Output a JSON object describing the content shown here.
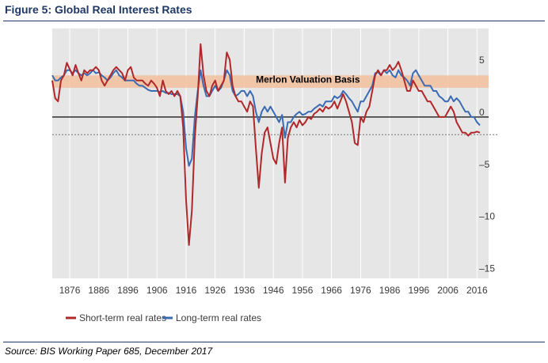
{
  "figure": {
    "title": "Figure 5:  Global Real Interest Rates",
    "source": "Source: BIS Working Paper 685, December 2017"
  },
  "colors": {
    "short": "#b0282a",
    "long": "#3a6bb3",
    "band": "#f2c09c",
    "plot_bg": "#e6e6e6",
    "zero_line": "#3c3c3c",
    "title": "#1f3864"
  },
  "chart_data": {
    "type": "line",
    "title": "",
    "xlabel": "",
    "ylabel": "",
    "xlim": [
      1870,
      2020
    ],
    "ylim": [
      -15.5,
      8.5
    ],
    "x_ticks": [
      1876,
      1886,
      1896,
      1906,
      1916,
      1926,
      1936,
      1946,
      1956,
      1966,
      1976,
      1986,
      1996,
      2006,
      2016
    ],
    "y_ticks": [
      5,
      0,
      -5,
      -10,
      -15
    ],
    "grid": "vertical",
    "zero_line": true,
    "reference_line": -1.7,
    "band": {
      "label": "Merlon Valuation Basis",
      "from": 2.8,
      "to": 4.0
    },
    "legend_position": "bottom-left",
    "series": [
      {
        "name": "Short-term real rates",
        "points": [
          [
            1870,
            3.5
          ],
          [
            1871,
            1.8
          ],
          [
            1872,
            1.5
          ],
          [
            1873,
            3.5
          ],
          [
            1874,
            4.0
          ],
          [
            1875,
            5.2
          ],
          [
            1876,
            4.6
          ],
          [
            1877,
            4.0
          ],
          [
            1878,
            5.0
          ],
          [
            1879,
            4.2
          ],
          [
            1880,
            3.5
          ],
          [
            1881,
            4.5
          ],
          [
            1882,
            4.2
          ],
          [
            1883,
            4.5
          ],
          [
            1884,
            4.5
          ],
          [
            1885,
            4.8
          ],
          [
            1886,
            4.5
          ],
          [
            1887,
            3.5
          ],
          [
            1888,
            3.0
          ],
          [
            1889,
            3.5
          ],
          [
            1890,
            4.0
          ],
          [
            1891,
            4.5
          ],
          [
            1892,
            4.8
          ],
          [
            1893,
            4.5
          ],
          [
            1894,
            4.2
          ],
          [
            1895,
            3.5
          ],
          [
            1896,
            4.5
          ],
          [
            1897,
            4.8
          ],
          [
            1898,
            3.8
          ],
          [
            1899,
            3.5
          ],
          [
            1900,
            3.5
          ],
          [
            1901,
            3.5
          ],
          [
            1902,
            3.2
          ],
          [
            1903,
            3.0
          ],
          [
            1904,
            3.5
          ],
          [
            1905,
            3.2
          ],
          [
            1906,
            2.8
          ],
          [
            1907,
            2.0
          ],
          [
            1908,
            3.5
          ],
          [
            1909,
            2.5
          ],
          [
            1910,
            2.2
          ],
          [
            1911,
            2.5
          ],
          [
            1912,
            2.0
          ],
          [
            1913,
            2.5
          ],
          [
            1914,
            2.0
          ],
          [
            1915,
            -1.0
          ],
          [
            1916,
            -8.0
          ],
          [
            1917,
            -12.3
          ],
          [
            1918,
            -9.0
          ],
          [
            1919,
            -2.0
          ],
          [
            1920,
            2.0
          ],
          [
            1921,
            7.0
          ],
          [
            1922,
            4.0
          ],
          [
            1923,
            2.5
          ],
          [
            1924,
            2.0
          ],
          [
            1925,
            3.0
          ],
          [
            1926,
            3.5
          ],
          [
            1927,
            2.5
          ],
          [
            1928,
            3.0
          ],
          [
            1929,
            3.5
          ],
          [
            1930,
            6.2
          ],
          [
            1931,
            5.5
          ],
          [
            1932,
            3.0
          ],
          [
            1933,
            2.0
          ],
          [
            1934,
            1.5
          ],
          [
            1935,
            1.5
          ],
          [
            1936,
            1.0
          ],
          [
            1937,
            0.5
          ],
          [
            1938,
            1.5
          ],
          [
            1939,
            1.0
          ],
          [
            1940,
            -3.0
          ],
          [
            1941,
            -6.8
          ],
          [
            1942,
            -3.5
          ],
          [
            1943,
            -1.5
          ],
          [
            1944,
            -1.0
          ],
          [
            1945,
            -2.5
          ],
          [
            1946,
            -4.0
          ],
          [
            1947,
            -4.5
          ],
          [
            1948,
            -2.5
          ],
          [
            1949,
            -1.0
          ],
          [
            1950,
            -6.3
          ],
          [
            1951,
            -2.0
          ],
          [
            1952,
            -1.0
          ],
          [
            1953,
            -0.5
          ],
          [
            1954,
            -1.0
          ],
          [
            1955,
            -0.3
          ],
          [
            1956,
            -0.8
          ],
          [
            1957,
            -0.5
          ],
          [
            1958,
            0.0
          ],
          [
            1959,
            -0.2
          ],
          [
            1960,
            0.3
          ],
          [
            1961,
            0.5
          ],
          [
            1962,
            0.8
          ],
          [
            1963,
            0.5
          ],
          [
            1964,
            1.0
          ],
          [
            1965,
            0.8
          ],
          [
            1966,
            1.0
          ],
          [
            1967,
            1.5
          ],
          [
            1968,
            0.8
          ],
          [
            1969,
            1.5
          ],
          [
            1970,
            2.2
          ],
          [
            1971,
            1.5
          ],
          [
            1972,
            0.5
          ],
          [
            1973,
            -0.5
          ],
          [
            1974,
            -2.5
          ],
          [
            1975,
            -2.7
          ],
          [
            1976,
            0.0
          ],
          [
            1977,
            -0.5
          ],
          [
            1978,
            0.5
          ],
          [
            1979,
            1.0
          ],
          [
            1980,
            2.5
          ],
          [
            1981,
            4.0
          ],
          [
            1982,
            4.5
          ],
          [
            1983,
            4.0
          ],
          [
            1984,
            4.5
          ],
          [
            1985,
            4.5
          ],
          [
            1986,
            5.0
          ],
          [
            1987,
            4.5
          ],
          [
            1988,
            4.8
          ],
          [
            1989,
            5.3
          ],
          [
            1990,
            4.5
          ],
          [
            1991,
            3.5
          ],
          [
            1992,
            2.5
          ],
          [
            1993,
            2.5
          ],
          [
            1994,
            3.5
          ],
          [
            1995,
            3.0
          ],
          [
            1996,
            2.5
          ],
          [
            1997,
            2.5
          ],
          [
            1998,
            2.0
          ],
          [
            1999,
            1.5
          ],
          [
            2000,
            1.5
          ],
          [
            2001,
            1.0
          ],
          [
            2002,
            0.5
          ],
          [
            2003,
            0.0
          ],
          [
            2004,
            0.0
          ],
          [
            2005,
            0.0
          ],
          [
            2006,
            0.5
          ],
          [
            2007,
            1.0
          ],
          [
            2008,
            0.5
          ],
          [
            2009,
            -0.5
          ],
          [
            2010,
            -1.0
          ],
          [
            2011,
            -1.5
          ],
          [
            2012,
            -1.5
          ],
          [
            2013,
            -1.8
          ],
          [
            2014,
            -1.5
          ],
          [
            2015,
            -1.5
          ],
          [
            2016,
            -1.4
          ],
          [
            2017,
            -1.5
          ]
        ]
      },
      {
        "name": "Long-term real rates",
        "points": [
          [
            1870,
            4.0
          ],
          [
            1871,
            3.5
          ],
          [
            1872,
            3.5
          ],
          [
            1873,
            3.8
          ],
          [
            1874,
            4.0
          ],
          [
            1875,
            4.5
          ],
          [
            1876,
            4.5
          ],
          [
            1877,
            4.2
          ],
          [
            1878,
            4.5
          ],
          [
            1879,
            4.2
          ],
          [
            1880,
            4.0
          ],
          [
            1881,
            4.2
          ],
          [
            1882,
            4.0
          ],
          [
            1883,
            4.2
          ],
          [
            1884,
            4.5
          ],
          [
            1885,
            4.2
          ],
          [
            1886,
            4.3
          ],
          [
            1887,
            4.0
          ],
          [
            1888,
            3.8
          ],
          [
            1889,
            3.5
          ],
          [
            1890,
            3.8
          ],
          [
            1891,
            4.2
          ],
          [
            1892,
            4.5
          ],
          [
            1893,
            4.0
          ],
          [
            1894,
            3.8
          ],
          [
            1895,
            3.5
          ],
          [
            1896,
            3.5
          ],
          [
            1897,
            3.5
          ],
          [
            1898,
            3.5
          ],
          [
            1899,
            3.2
          ],
          [
            1900,
            3.0
          ],
          [
            1901,
            3.0
          ],
          [
            1902,
            2.8
          ],
          [
            1903,
            2.6
          ],
          [
            1904,
            2.5
          ],
          [
            1905,
            2.5
          ],
          [
            1906,
            2.5
          ],
          [
            1907,
            2.4
          ],
          [
            1908,
            2.5
          ],
          [
            1909,
            2.3
          ],
          [
            1910,
            2.3
          ],
          [
            1911,
            2.2
          ],
          [
            1912,
            2.2
          ],
          [
            1913,
            2.2
          ],
          [
            1914,
            2.0
          ],
          [
            1915,
            0.5
          ],
          [
            1916,
            -3.0
          ],
          [
            1917,
            -4.7
          ],
          [
            1918,
            -4.0
          ],
          [
            1919,
            0.0
          ],
          [
            1920,
            2.5
          ],
          [
            1921,
            4.5
          ],
          [
            1922,
            3.0
          ],
          [
            1923,
            2.0
          ],
          [
            1924,
            2.0
          ],
          [
            1925,
            2.5
          ],
          [
            1926,
            3.0
          ],
          [
            1927,
            2.5
          ],
          [
            1928,
            2.8
          ],
          [
            1929,
            3.5
          ],
          [
            1930,
            4.5
          ],
          [
            1931,
            4.0
          ],
          [
            1932,
            2.5
          ],
          [
            1933,
            2.0
          ],
          [
            1934,
            2.2
          ],
          [
            1935,
            2.5
          ],
          [
            1936,
            2.5
          ],
          [
            1937,
            2.0
          ],
          [
            1938,
            2.5
          ],
          [
            1939,
            2.0
          ],
          [
            1940,
            0.5
          ],
          [
            1941,
            -0.5
          ],
          [
            1942,
            0.5
          ],
          [
            1943,
            1.0
          ],
          [
            1944,
            0.5
          ],
          [
            1945,
            1.0
          ],
          [
            1946,
            0.5
          ],
          [
            1947,
            0.0
          ],
          [
            1948,
            -0.5
          ],
          [
            1949,
            0.2
          ],
          [
            1950,
            -2.0
          ],
          [
            1951,
            -0.5
          ],
          [
            1952,
            -0.5
          ],
          [
            1953,
            0.0
          ],
          [
            1954,
            0.3
          ],
          [
            1955,
            0.5
          ],
          [
            1956,
            0.2
          ],
          [
            1957,
            0.3
          ],
          [
            1958,
            0.5
          ],
          [
            1959,
            0.5
          ],
          [
            1960,
            0.8
          ],
          [
            1961,
            1.0
          ],
          [
            1962,
            1.2
          ],
          [
            1963,
            1.0
          ],
          [
            1964,
            1.5
          ],
          [
            1965,
            1.5
          ],
          [
            1966,
            1.5
          ],
          [
            1967,
            2.0
          ],
          [
            1968,
            1.8
          ],
          [
            1969,
            2.0
          ],
          [
            1970,
            2.5
          ],
          [
            1971,
            2.2
          ],
          [
            1972,
            1.8
          ],
          [
            1973,
            1.5
          ],
          [
            1974,
            1.0
          ],
          [
            1975,
            0.5
          ],
          [
            1976,
            1.5
          ],
          [
            1977,
            1.5
          ],
          [
            1978,
            2.0
          ],
          [
            1979,
            2.5
          ],
          [
            1980,
            3.0
          ],
          [
            1981,
            4.2
          ],
          [
            1982,
            4.3
          ],
          [
            1983,
            4.0
          ],
          [
            1984,
            4.5
          ],
          [
            1985,
            4.2
          ],
          [
            1986,
            4.5
          ],
          [
            1987,
            4.0
          ],
          [
            1988,
            3.8
          ],
          [
            1989,
            4.5
          ],
          [
            1990,
            4.0
          ],
          [
            1991,
            3.8
          ],
          [
            1992,
            3.5
          ],
          [
            1993,
            3.0
          ],
          [
            1994,
            4.2
          ],
          [
            1995,
            4.5
          ],
          [
            1996,
            4.0
          ],
          [
            1997,
            3.5
          ],
          [
            1998,
            3.0
          ],
          [
            1999,
            3.0
          ],
          [
            2000,
            3.0
          ],
          [
            2001,
            2.5
          ],
          [
            2002,
            2.5
          ],
          [
            2003,
            2.0
          ],
          [
            2004,
            1.8
          ],
          [
            2005,
            1.5
          ],
          [
            2006,
            1.5
          ],
          [
            2007,
            2.0
          ],
          [
            2008,
            1.5
          ],
          [
            2009,
            1.8
          ],
          [
            2010,
            1.5
          ],
          [
            2011,
            1.0
          ],
          [
            2012,
            0.5
          ],
          [
            2013,
            0.5
          ],
          [
            2014,
            0.0
          ],
          [
            2015,
            0.0
          ],
          [
            2016,
            -0.5
          ],
          [
            2017,
            -0.8
          ]
        ]
      }
    ]
  }
}
